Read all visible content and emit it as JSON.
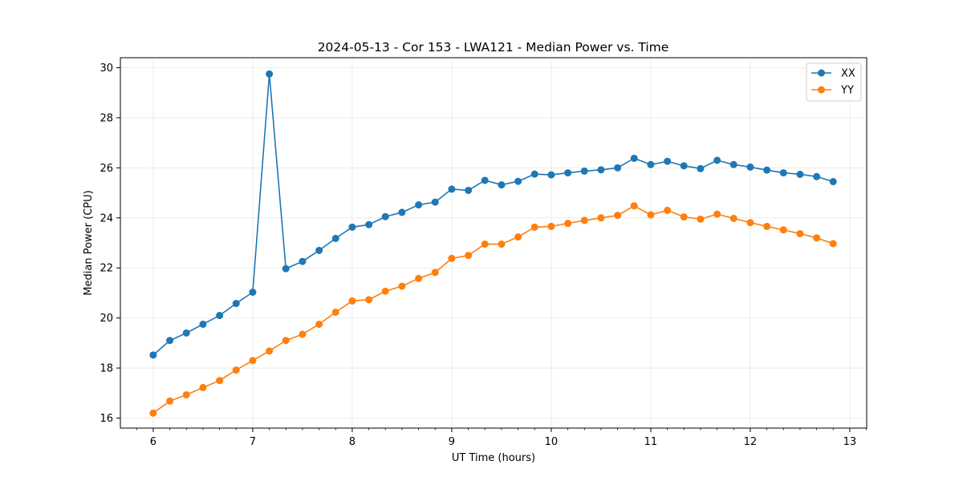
{
  "chart_data": {
    "type": "line",
    "title": "2024-05-13 - Cor 153 - LWA121 - Median Power vs. Time",
    "xlabel": "UT Time (hours)",
    "ylabel": "Median Power (CPU)",
    "xlim": [
      5.67,
      13.17
    ],
    "ylim": [
      15.6,
      30.4
    ],
    "xticks": [
      6,
      7,
      8,
      9,
      10,
      11,
      12,
      13
    ],
    "yticks": [
      16,
      18,
      20,
      22,
      24,
      26,
      28,
      30
    ],
    "grid": true,
    "legend_position": "top-right",
    "x": [
      6.0,
      6.167,
      6.333,
      6.5,
      6.667,
      6.833,
      7.0,
      7.167,
      7.333,
      7.5,
      7.667,
      7.833,
      8.0,
      8.167,
      8.333,
      8.5,
      8.667,
      8.833,
      9.0,
      9.167,
      9.333,
      9.5,
      9.667,
      9.833,
      10.0,
      10.167,
      10.333,
      10.5,
      10.667,
      10.833,
      11.0,
      11.167,
      11.333,
      11.5,
      11.667,
      11.833,
      12.0,
      12.167,
      12.333,
      12.5,
      12.667,
      12.833
    ],
    "series": [
      {
        "name": "XX",
        "color": "#1f77b4",
        "values": [
          18.52,
          19.1,
          19.4,
          19.75,
          20.1,
          20.58,
          21.03,
          29.75,
          21.97,
          22.26,
          22.7,
          23.18,
          23.63,
          23.73,
          24.05,
          24.22,
          24.52,
          24.63,
          25.15,
          25.1,
          25.5,
          25.32,
          25.46,
          25.75,
          25.72,
          25.8,
          25.87,
          25.92,
          26.0,
          26.38,
          26.13,
          26.26,
          26.08,
          25.97,
          26.3,
          26.13,
          26.03,
          25.91,
          25.8,
          25.74,
          25.65,
          25.45
        ]
      },
      {
        "name": "YY",
        "color": "#ff7f0e",
        "values": [
          16.2,
          16.68,
          16.93,
          17.22,
          17.5,
          17.92,
          18.3,
          18.68,
          19.1,
          19.35,
          19.75,
          20.23,
          20.68,
          20.73,
          21.07,
          21.27,
          21.58,
          21.82,
          22.38,
          22.5,
          22.95,
          22.95,
          23.24,
          23.63,
          23.66,
          23.78,
          23.9,
          24.0,
          24.1,
          24.48,
          24.12,
          24.3,
          24.04,
          23.95,
          24.15,
          23.98,
          23.81,
          23.66,
          23.52,
          23.37,
          23.2,
          22.97
        ]
      }
    ]
  }
}
